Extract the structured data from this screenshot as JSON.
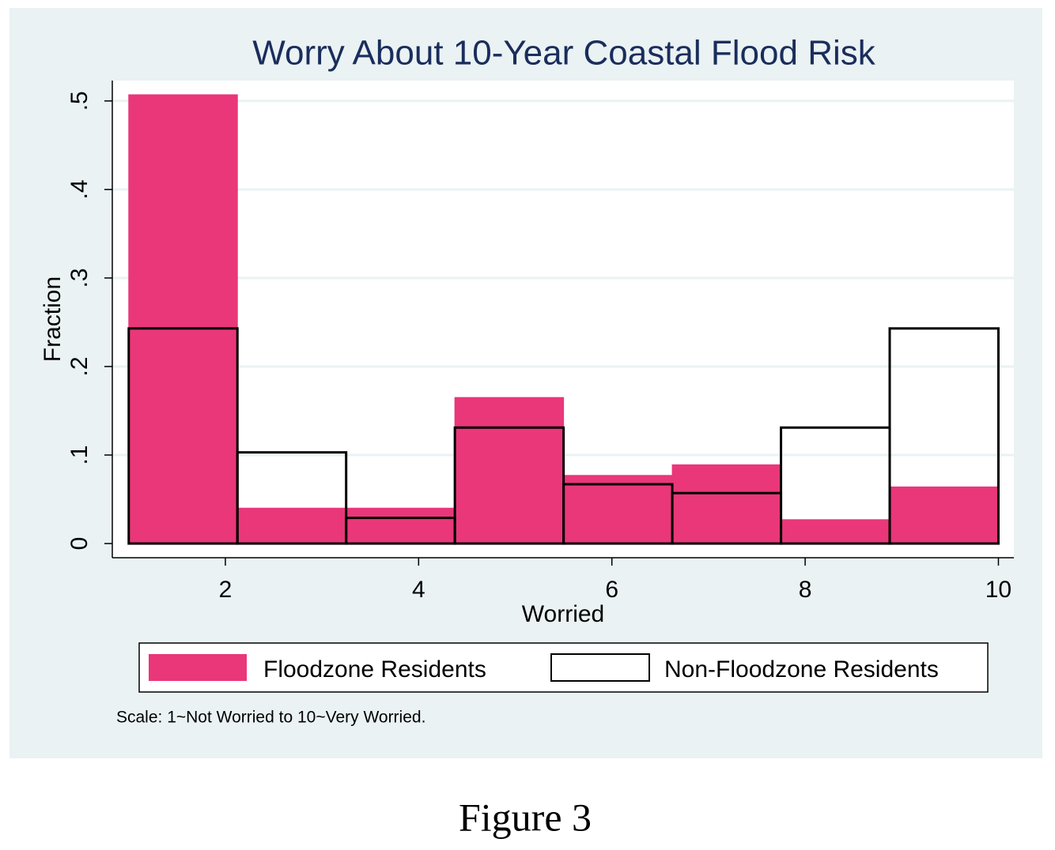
{
  "chart_data": {
    "type": "histogram",
    "title": "Worry About 10-Year Coastal Flood Risk",
    "x_label": "Worried",
    "y_label": "Fraction",
    "bins": [
      1,
      2.125,
      3.25,
      4.375,
      5.5,
      6.625,
      7.75,
      8.875,
      10
    ],
    "series": [
      {
        "name": "Floodzone Residents",
        "color": "#e9377a",
        "style": "filled",
        "values": [
          0.507,
          0.04,
          0.04,
          0.165,
          0.077,
          0.089,
          0.027,
          0.064
        ]
      },
      {
        "name": "Non-Floodzone Residents",
        "color": "#000000",
        "style": "outline",
        "values": [
          0.243,
          0.103,
          0.029,
          0.131,
          0.067,
          0.057,
          0.131,
          0.243
        ]
      }
    ],
    "xlim": [
      0.83,
      10.16
    ],
    "xticks": [
      2,
      4,
      6,
      8,
      10
    ],
    "ylim": [
      -0.016,
      0.523
    ],
    "yticks": [
      0,
      {
        "value": 0.1,
        "label": ".1"
      },
      {
        "value": 0.2,
        "label": ".2"
      },
      {
        "value": 0.3,
        "label": ".3"
      },
      {
        "value": 0.4,
        "label": ".4"
      },
      {
        "value": 0.5,
        "label": ".5"
      }
    ],
    "grid": true,
    "legend": "bottom",
    "note": "Scale: 1~Not Worried to 10~Very Worried.",
    "caption": "Figure 3"
  }
}
